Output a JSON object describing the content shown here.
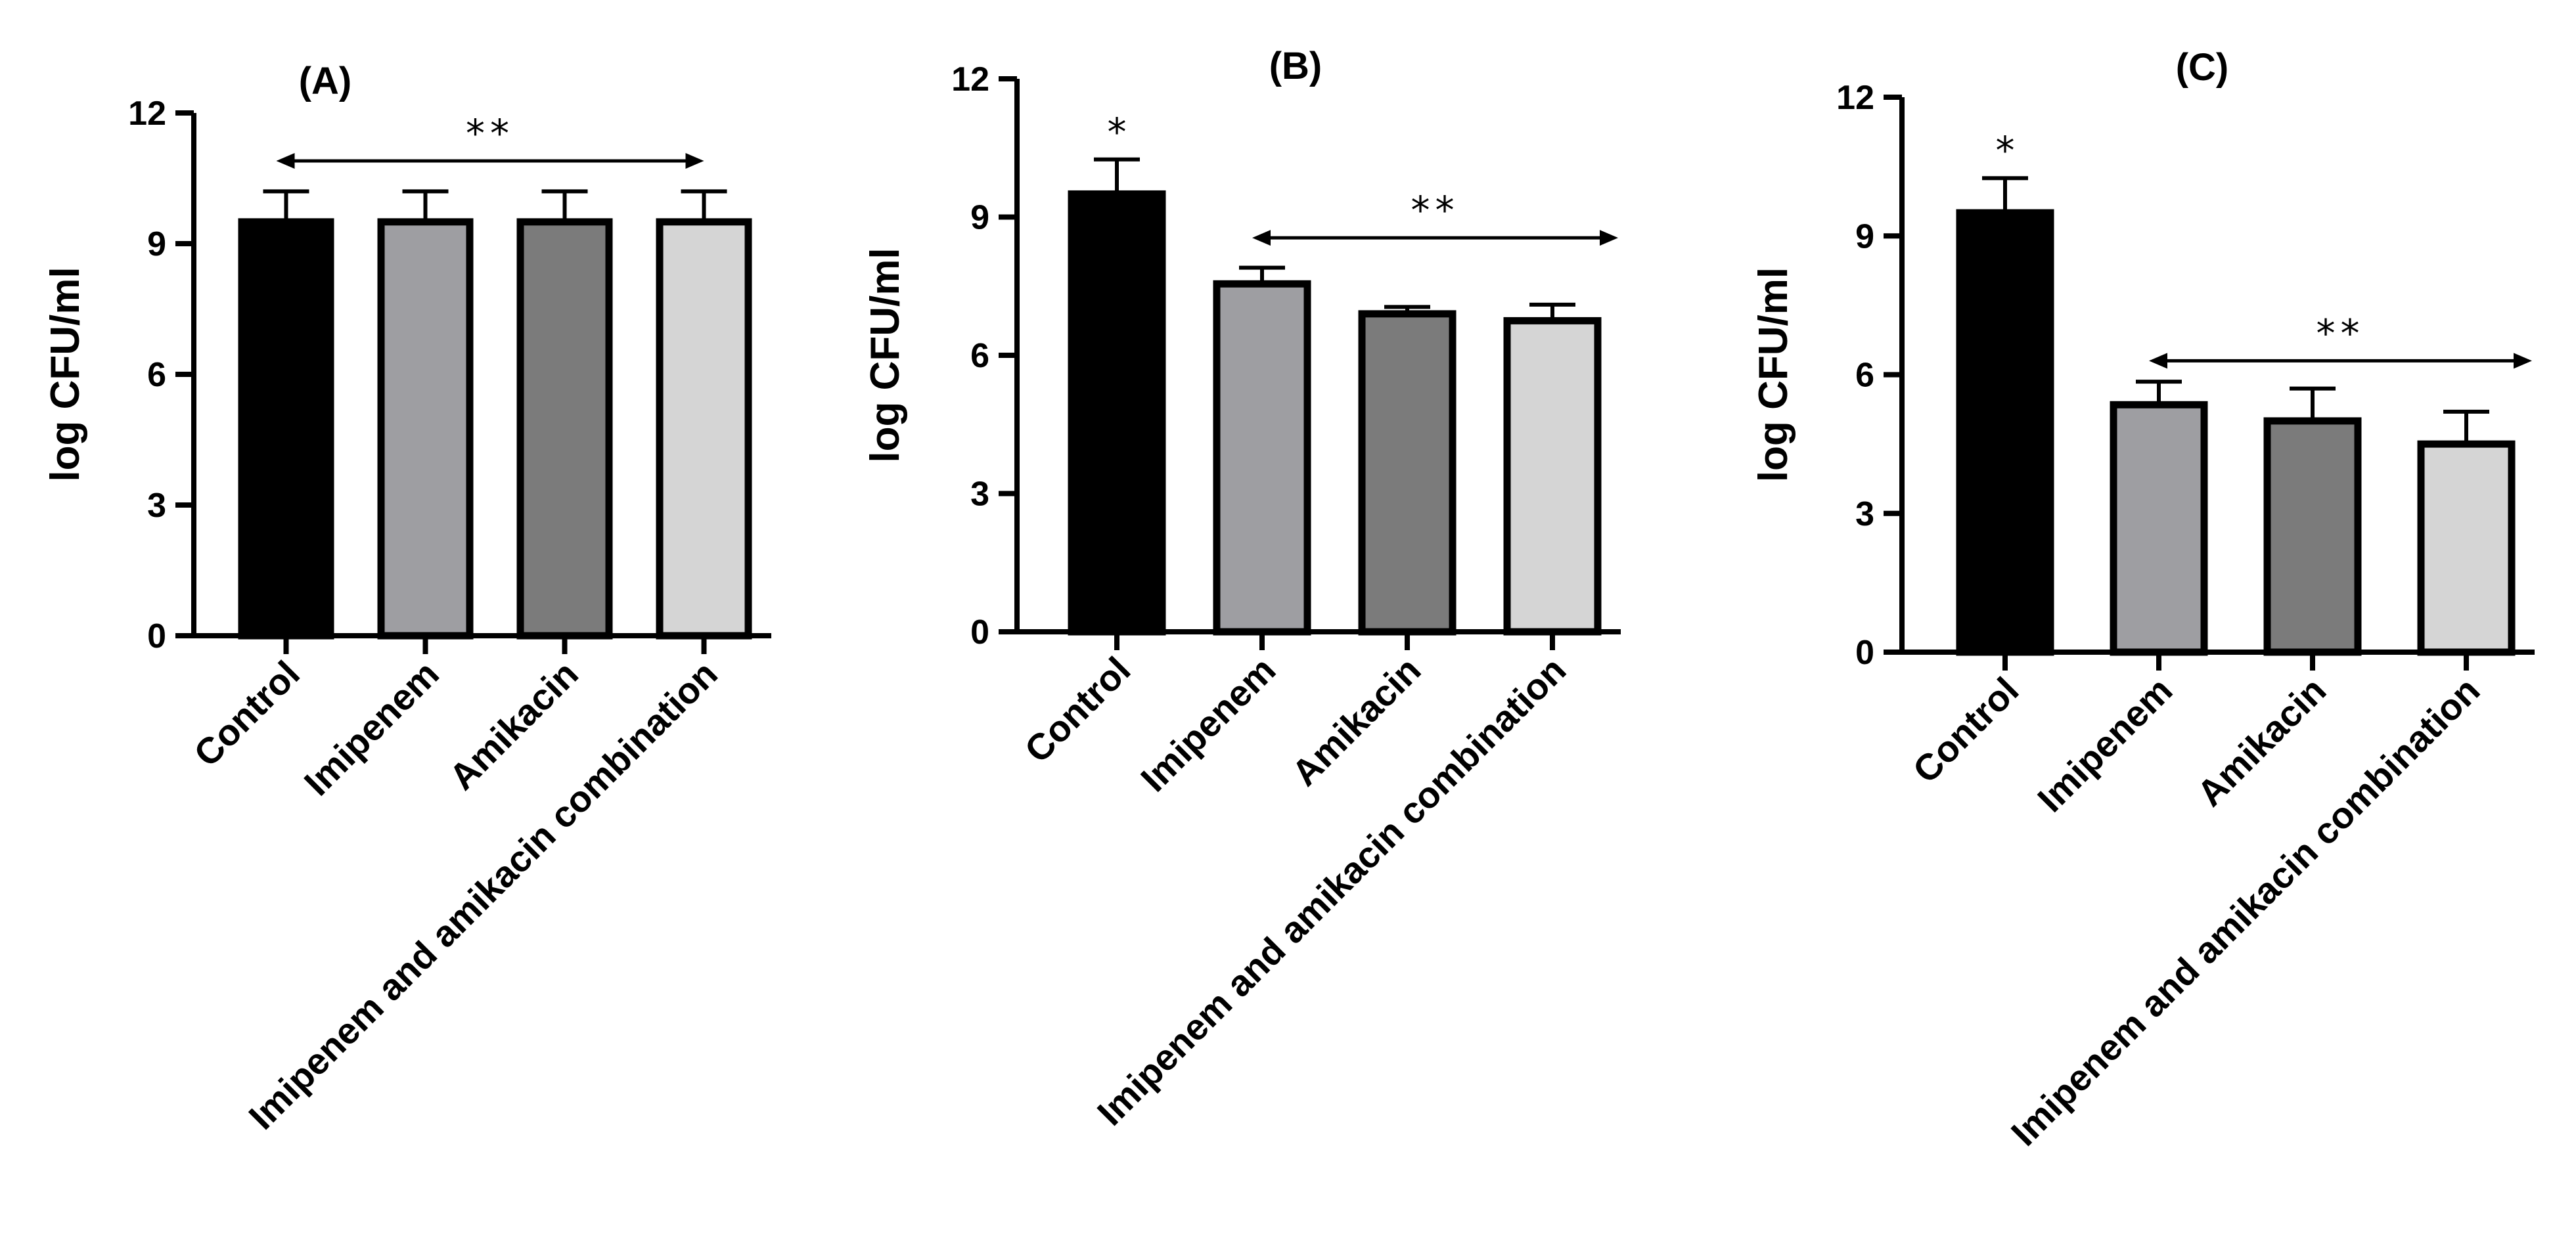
{
  "colors": {
    "Control": "#000000",
    "Imipenem": "#9e9ea2",
    "Amikacin": "#7b7b7b",
    "Imipenem and amikacin combination": "#d5d5d5"
  },
  "chart_data": [
    {
      "type": "bar",
      "title": "(A)",
      "ylabel": "log CFU/ml",
      "xlabel": "",
      "ylim": [
        0,
        12
      ],
      "yticks": [
        0,
        3,
        6,
        9,
        12
      ],
      "yticklabels": [
        "0",
        "3",
        "6",
        "9",
        "12"
      ],
      "categories": [
        "Control",
        "Imipenem",
        "Amikacin",
        "Imipenem and amikacin combination"
      ],
      "values": [
        9.5,
        9.5,
        9.5,
        9.5
      ],
      "errors": [
        0.7,
        0.7,
        0.7,
        0.7
      ],
      "bar_annotations": [
        "",
        "",
        "",
        ""
      ],
      "bracket": {
        "label": "**",
        "from_category": 0,
        "to_category": 3,
        "value": 10.9
      }
    },
    {
      "type": "bar",
      "title": "(B)",
      "ylabel": "log CFU/ml",
      "xlabel": "",
      "ylim": [
        0,
        12
      ],
      "yticks": [
        0,
        3,
        6,
        9,
        12
      ],
      "yticklabels": [
        "0",
        "3",
        "6",
        "9",
        "12"
      ],
      "categories": [
        "Control",
        "Imipenem",
        "Amikacin",
        "Imipenem and amikacin combination"
      ],
      "values": [
        9.5,
        7.55,
        6.9,
        6.75
      ],
      "errors": [
        0.75,
        0.35,
        0.15,
        0.35
      ],
      "bar_annotations": [
        "*",
        "",
        "",
        ""
      ],
      "bracket": {
        "label": "**",
        "from_category": 1,
        "to_category": 4,
        "value": 8.55
      }
    },
    {
      "type": "bar",
      "title": "(C)",
      "ylabel": "log CFU/ml",
      "xlabel": "",
      "ylim": [
        0,
        12
      ],
      "yticks": [
        0,
        3,
        6,
        9,
        12
      ],
      "yticklabels": [
        "0",
        "3",
        "6",
        "9",
        "12"
      ],
      "categories": [
        "Control",
        "Imipenem",
        "Amikacin",
        "Imipenem and amikacin combination"
      ],
      "values": [
        9.5,
        5.35,
        5.0,
        4.5
      ],
      "errors": [
        0.75,
        0.5,
        0.7,
        0.7
      ],
      "bar_annotations": [
        "*",
        "",
        "",
        ""
      ],
      "bracket": {
        "label": "**",
        "from_category": 1,
        "to_category": 4,
        "value": 6.3
      }
    }
  ]
}
